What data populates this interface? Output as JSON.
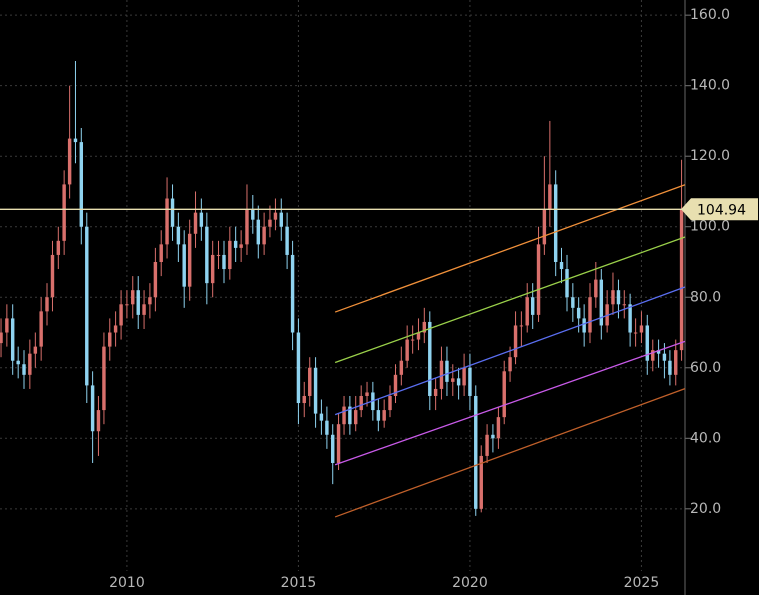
{
  "chart_data": {
    "type": "candlestick",
    "x": [
      2006.33,
      2006.5,
      2006.67,
      2006.83,
      2007.0,
      2007.17,
      2007.33,
      2007.5,
      2007.67,
      2007.83,
      2008.0,
      2008.17,
      2008.33,
      2008.5,
      2008.67,
      2008.83,
      2009.0,
      2009.17,
      2009.33,
      2009.5,
      2009.67,
      2009.83,
      2010.0,
      2010.17,
      2010.33,
      2010.5,
      2010.67,
      2010.83,
      2011.0,
      2011.17,
      2011.33,
      2011.5,
      2011.67,
      2011.83,
      2012.0,
      2012.17,
      2012.33,
      2012.5,
      2012.67,
      2012.83,
      2013.0,
      2013.17,
      2013.33,
      2013.5,
      2013.67,
      2013.83,
      2014.0,
      2014.17,
      2014.33,
      2014.5,
      2014.67,
      2014.83,
      2015.0,
      2015.17,
      2015.33,
      2015.5,
      2015.67,
      2015.83,
      2016.0,
      2016.17,
      2016.33,
      2016.5,
      2016.67,
      2016.83,
      2017.0,
      2017.17,
      2017.33,
      2017.5,
      2017.67,
      2017.83,
      2018.0,
      2018.17,
      2018.33,
      2018.5,
      2018.67,
      2018.83,
      2019.0,
      2019.17,
      2019.33,
      2019.5,
      2019.67,
      2019.83,
      2020.0,
      2020.17,
      2020.33,
      2020.5,
      2020.67,
      2020.83,
      2021.0,
      2021.17,
      2021.33,
      2021.5,
      2021.67,
      2021.83,
      2022.0,
      2022.17,
      2022.33,
      2022.5,
      2022.67,
      2022.83,
      2023.0,
      2023.17,
      2023.33,
      2023.5,
      2023.67,
      2023.83,
      2024.0,
      2024.17,
      2024.33,
      2024.5,
      2024.67,
      2024.83,
      2025.0,
      2025.17,
      2025.33,
      2025.5,
      2025.67,
      2025.83,
      2026.0,
      2026.17
    ],
    "open": [
      67,
      70,
      74,
      62,
      61,
      58,
      64,
      66,
      76,
      80,
      92,
      96,
      112,
      125,
      124,
      100,
      55,
      42,
      48,
      66,
      70,
      72,
      78,
      78,
      82,
      75,
      78,
      80,
      90,
      95,
      108,
      100,
      95,
      83,
      98,
      104,
      100,
      84,
      92,
      92,
      88,
      96,
      94,
      95,
      105,
      102,
      95,
      100,
      102,
      104,
      100,
      92,
      70,
      50,
      52,
      60,
      47,
      45,
      41,
      33,
      44,
      49,
      44,
      48,
      52,
      53,
      48,
      45,
      48,
      52,
      58,
      62,
      68,
      68,
      70,
      73,
      52,
      54,
      62,
      56,
      57,
      55,
      60,
      52,
      20,
      35,
      41,
      40,
      46,
      59,
      63,
      72,
      72,
      80,
      75,
      95,
      105,
      112,
      90,
      88,
      80,
      77,
      74,
      70,
      80,
      85,
      72,
      78,
      82,
      78,
      78,
      70,
      70,
      72,
      62,
      65,
      64,
      62,
      58,
      65
    ],
    "high": [
      74,
      78,
      78,
      66,
      65,
      68,
      70,
      80,
      84,
      96,
      100,
      116,
      140,
      147,
      128,
      104,
      59,
      52,
      70,
      74,
      76,
      82,
      82,
      86,
      86,
      82,
      84,
      94,
      99,
      114,
      112,
      104,
      99,
      102,
      110,
      108,
      104,
      96,
      96,
      96,
      100,
      100,
      99,
      112,
      109,
      106,
      104,
      106,
      108,
      108,
      104,
      96,
      74,
      56,
      63,
      63,
      51,
      49,
      44,
      47,
      52,
      52,
      52,
      55,
      56,
      56,
      51,
      51,
      55,
      61,
      66,
      72,
      72,
      74,
      77,
      76,
      57,
      66,
      66,
      61,
      60,
      64,
      64,
      55,
      38,
      44,
      44,
      49,
      62,
      66,
      76,
      76,
      84,
      84,
      100,
      120,
      130,
      116,
      94,
      92,
      84,
      80,
      78,
      84,
      90,
      88,
      82,
      87,
      85,
      82,
      81,
      74,
      76,
      75,
      68,
      68,
      67,
      65,
      68,
      119
    ],
    "low": [
      63,
      66,
      58,
      57,
      54,
      54,
      60,
      62,
      72,
      76,
      88,
      92,
      108,
      118,
      95,
      50,
      33,
      35,
      44,
      62,
      66,
      68,
      74,
      74,
      71,
      71,
      74,
      76,
      86,
      91,
      96,
      90,
      77,
      79,
      94,
      96,
      78,
      80,
      88,
      84,
      85,
      90,
      90,
      92,
      98,
      91,
      92,
      97,
      99,
      96,
      88,
      65,
      44,
      46,
      49,
      43,
      41,
      37,
      27,
      31,
      41,
      41,
      42,
      46,
      49,
      45,
      42,
      43,
      46,
      50,
      55,
      60,
      64,
      65,
      67,
      48,
      48,
      51,
      52,
      52,
      51,
      52,
      48,
      18,
      19,
      33,
      36,
      37,
      44,
      56,
      61,
      66,
      70,
      71,
      73,
      92,
      100,
      86,
      84,
      76,
      73,
      70,
      66,
      67,
      77,
      68,
      70,
      75,
      74,
      74,
      66,
      66,
      67,
      58,
      59,
      60,
      57,
      55,
      55,
      62
    ],
    "close": [
      70,
      74,
      62,
      61,
      58,
      64,
      66,
      76,
      80,
      92,
      96,
      112,
      125,
      124,
      100,
      55,
      42,
      48,
      66,
      70,
      72,
      78,
      78,
      82,
      75,
      78,
      80,
      90,
      95,
      108,
      100,
      95,
      83,
      98,
      104,
      100,
      84,
      92,
      92,
      88,
      96,
      94,
      95,
      105,
      102,
      95,
      100,
      102,
      104,
      100,
      92,
      70,
      50,
      52,
      60,
      47,
      45,
      41,
      33,
      44,
      49,
      44,
      48,
      52,
      53,
      48,
      45,
      48,
      52,
      58,
      62,
      68,
      68,
      70,
      73,
      52,
      54,
      62,
      56,
      57,
      55,
      60,
      52,
      20,
      35,
      41,
      40,
      46,
      59,
      63,
      72,
      72,
      80,
      75,
      95,
      105,
      112,
      90,
      88,
      80,
      77,
      74,
      70,
      80,
      85,
      72,
      78,
      82,
      78,
      78,
      70,
      70,
      72,
      62,
      65,
      64,
      62,
      58,
      65,
      104.94
    ],
    "up_color": "#d9706c",
    "down_color": "#8fd3f0",
    "xlim": [
      2006.3,
      2026.27
    ],
    "xticks": [
      2010,
      2015,
      2020,
      2025
    ],
    "ylim": [
      3.5,
      164.3
    ],
    "yticks": [
      {
        "value": 20,
        "label": "20.0"
      },
      {
        "value": 40,
        "label": "40.0"
      },
      {
        "value": 60,
        "label": "60.0"
      },
      {
        "value": 80,
        "label": "80.0"
      },
      {
        "value": 100,
        "label": "100.0"
      },
      {
        "value": 120,
        "label": "120.0"
      },
      {
        "value": 140,
        "label": "140.0"
      },
      {
        "value": 160,
        "label": "160.0"
      }
    ],
    "grid": true,
    "price_line": {
      "value": 104.94,
      "color": "#e8dfb0"
    },
    "channel": [
      {
        "color": "#f0903a",
        "x": [
          2016.07,
          2026.27
        ],
        "values": [
          75.8,
          111.9
        ]
      },
      {
        "color": "#9ad04a",
        "x": [
          2016.07,
          2026.27
        ],
        "values": [
          61.5,
          97.1
        ]
      },
      {
        "color": "#5a6ef0",
        "x": [
          2016.07,
          2026.27
        ],
        "values": [
          46.7,
          82.9
        ]
      },
      {
        "color": "#c85ae8",
        "x": [
          2016.07,
          2026.27
        ],
        "values": [
          32.5,
          67.5
        ]
      },
      {
        "color": "#c0602a",
        "x": [
          2016.07,
          2026.27
        ],
        "values": [
          17.7,
          54.1
        ]
      }
    ]
  }
}
